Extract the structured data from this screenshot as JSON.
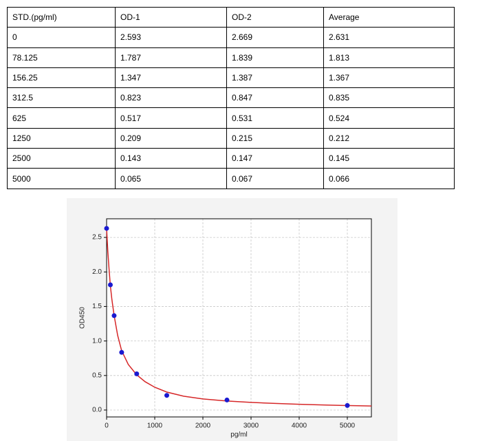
{
  "table": {
    "header": [
      "STD.(pg/ml)",
      "OD-1",
      "OD-2",
      "Average"
    ],
    "rows": [
      [
        "0",
        "2.593",
        "2.669",
        "2.631"
      ],
      [
        "78.125",
        "1.787",
        "1.839",
        "1.813"
      ],
      [
        "156.25",
        "1.347",
        "1.387",
        "1.367"
      ],
      [
        "312.5",
        "0.823",
        "0.847",
        "0.835"
      ],
      [
        "625",
        "0.517",
        "0.531",
        "0.524"
      ],
      [
        "1250",
        "0.209",
        "0.215",
        "0.212"
      ],
      [
        "2500",
        "0.143",
        "0.147",
        "0.145"
      ],
      [
        "5000",
        "0.065",
        "0.067",
        "0.066"
      ]
    ]
  },
  "chart_data": {
    "type": "scatter",
    "xlabel": "pg/ml",
    "ylabel": "OD450",
    "xlim": [
      0,
      5500
    ],
    "ylim": [
      -0.1,
      2.77
    ],
    "xticks": [
      0,
      1000,
      2000,
      3000,
      4000,
      5000
    ],
    "yticks": [
      {
        "value": 0,
        "label": "0.0"
      },
      0.5,
      {
        "value": 1,
        "label": "1.0"
      },
      1.5,
      {
        "value": 2,
        "label": "2.0"
      },
      2.5
    ],
    "grid": true,
    "series": [
      {
        "mode": "markers",
        "color": "#1a1ad0",
        "x": [
          0,
          78.125,
          156.25,
          312.5,
          625,
          1250,
          2500,
          5000
        ],
        "values": [
          2.631,
          1.813,
          1.367,
          0.835,
          0.524,
          0.212,
          0.145,
          0.066
        ]
      },
      {
        "mode": "line",
        "color": "#d62728",
        "x": [
          0,
          25,
          50,
          78,
          110,
          156,
          230,
          312,
          450,
          625,
          800,
          1000,
          1250,
          1600,
          2000,
          2500,
          3000,
          3500,
          4000,
          4500,
          5000,
          5500
        ],
        "values": [
          2.63,
          2.3,
          2.05,
          1.8,
          1.6,
          1.37,
          1.08,
          0.86,
          0.66,
          0.51,
          0.41,
          0.33,
          0.26,
          0.2,
          0.16,
          0.13,
          0.11,
          0.095,
          0.083,
          0.073,
          0.065,
          0.058
        ]
      }
    ]
  }
}
